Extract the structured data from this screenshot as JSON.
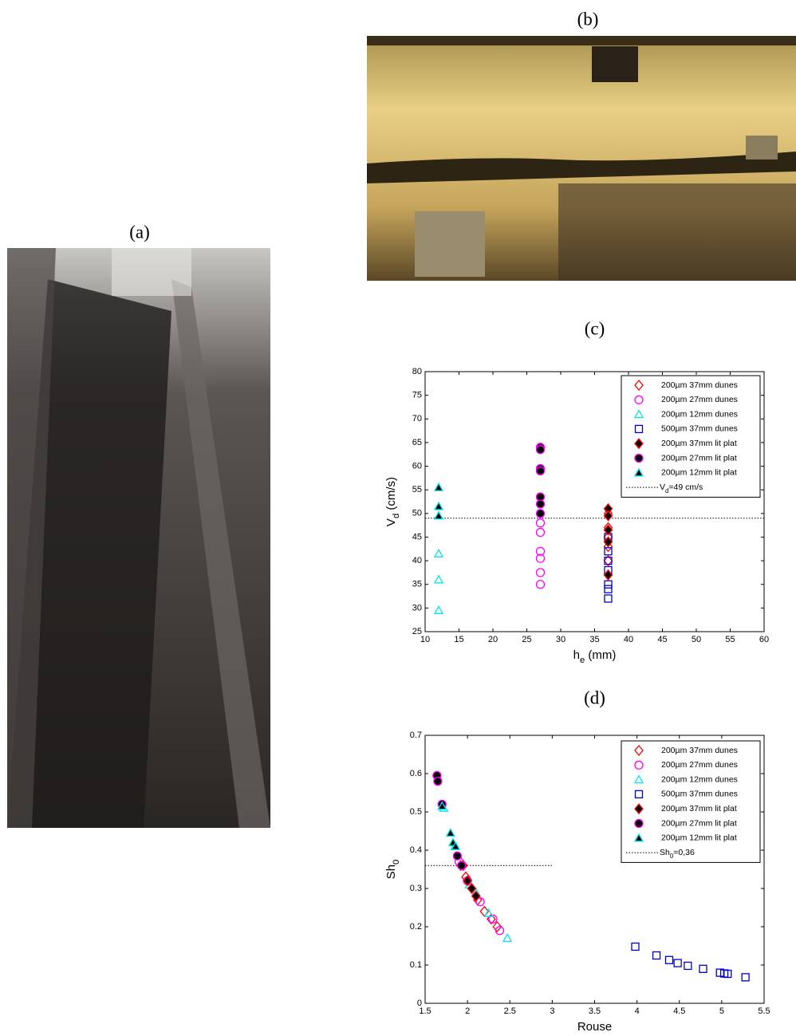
{
  "panel_labels": [
    "(a)",
    "(b)"
  ],
  "chart_data": [
    {
      "type": "scatter",
      "title": "(c)",
      "x_label": [
        "h",
        "e",
        " (mm)"
      ],
      "y_label": [
        "V",
        "d",
        " (cm/s)"
      ],
      "xlim": [
        10,
        60
      ],
      "xticks": [
        10,
        15,
        20,
        25,
        30,
        35,
        40,
        45,
        50,
        55,
        60
      ],
      "ylim": [
        25,
        80
      ],
      "yticks": [
        25,
        30,
        35,
        40,
        45,
        50,
        55,
        60,
        65,
        70,
        75,
        80
      ],
      "reference_line": {
        "value": 49,
        "x_end": 60,
        "label": [
          "V",
          "d",
          "=49 cm/s"
        ]
      },
      "legend": "upper right",
      "series": [
        {
          "name": "200µm 37mm dunes",
          "marker": "diamond",
          "color": "#ff0000",
          "fill": "none",
          "x": [
            37,
            37,
            37,
            37,
            37,
            37
          ],
          "values": [
            50,
            47,
            45,
            43,
            40,
            37
          ]
        },
        {
          "name": "200µm 27mm dunes",
          "marker": "circle",
          "color": "#ff00ff",
          "fill": "none",
          "x": [
            27,
            27,
            27,
            27,
            27,
            27
          ],
          "values": [
            48,
            46,
            42,
            40.5,
            37.5,
            35
          ]
        },
        {
          "name": "200µm 12mm dunes",
          "marker": "triangle",
          "color": "#00e5ee",
          "fill": "none",
          "x": [
            12,
            12,
            12,
            12
          ],
          "values": [
            49.5,
            41.5,
            36,
            29.5
          ]
        },
        {
          "name": "500µm 37mm dunes",
          "marker": "square",
          "color": "#0000cc",
          "fill": "none",
          "x": [
            37,
            37,
            37,
            37,
            37,
            37,
            37
          ],
          "values": [
            45,
            42,
            40,
            38,
            35,
            34,
            32
          ]
        },
        {
          "name": "200µm 37mm lit plat",
          "marker": "diamond",
          "color": "#ff0000",
          "fill": "#000000",
          "x": [
            37,
            37,
            37,
            37,
            37
          ],
          "values": [
            51,
            49.5,
            46.5,
            44,
            37
          ]
        },
        {
          "name": "200µm 27mm lit plat",
          "marker": "circle",
          "color": "#ff00ff",
          "fill": "#000000",
          "x": [
            27,
            27,
            27,
            27,
            27,
            27,
            27
          ],
          "values": [
            64,
            63.5,
            59.5,
            59,
            53.5,
            52,
            50
          ]
        },
        {
          "name": "200µm 12mm lit plat",
          "marker": "triangle",
          "color": "#00e5ee",
          "fill": "#000000",
          "x": [
            12,
            12,
            12
          ],
          "values": [
            55.5,
            51.5,
            49.5
          ]
        }
      ]
    },
    {
      "type": "scatter",
      "title": "(d)",
      "x_label": [
        "Rouse"
      ],
      "y_label": [
        "Sh",
        "0"
      ],
      "xlim": [
        1.5,
        5.5
      ],
      "xticks": [
        1.5,
        2,
        2.5,
        3,
        3.5,
        4,
        4.5,
        5,
        5.5
      ],
      "ylim": [
        0,
        0.7
      ],
      "yticks": [
        0,
        0.1,
        0.2,
        0.3,
        0.4,
        0.5,
        0.6,
        0.7
      ],
      "reference_line": {
        "value": 0.36,
        "x_end": 3,
        "label": [
          "Sh",
          "0",
          "=0,36"
        ]
      },
      "legend": "upper right",
      "series": [
        {
          "name": "200µm 37mm dunes",
          "marker": "diamond",
          "color": "#ff0000",
          "fill": "none",
          "x": [
            1.92,
            1.98,
            2.05,
            2.12,
            2.2,
            2.28,
            2.35
          ],
          "values": [
            0.36,
            0.33,
            0.3,
            0.27,
            0.24,
            0.22,
            0.2
          ]
        },
        {
          "name": "200µm 27mm dunes",
          "marker": "circle",
          "color": "#ff00ff",
          "fill": "none",
          "x": [
            1.9,
            2.0,
            2.15,
            2.3,
            2.38
          ],
          "values": [
            0.37,
            0.32,
            0.265,
            0.22,
            0.19
          ]
        },
        {
          "name": "200µm 12mm dunes",
          "marker": "triangle",
          "color": "#00e5ee",
          "fill": "none",
          "x": [
            1.72,
            1.85,
            2.02,
            2.1,
            2.25,
            2.47
          ],
          "values": [
            0.51,
            0.41,
            0.31,
            0.29,
            0.235,
            0.17
          ]
        },
        {
          "name": "500µm 37mm dunes",
          "marker": "square",
          "color": "#0000cc",
          "fill": "none",
          "x": [
            3.98,
            4.23,
            4.38,
            4.48,
            4.6,
            4.78,
            4.98,
            5.03,
            5.07,
            5.28
          ],
          "values": [
            0.148,
            0.125,
            0.113,
            0.105,
            0.098,
            0.09,
            0.08,
            0.078,
            0.077,
            0.068
          ]
        },
        {
          "name": "200µm 37mm lit plat",
          "marker": "diamond",
          "color": "#ff0000",
          "fill": "#000000",
          "x": [
            1.95,
            2.0,
            2.05,
            2.1
          ],
          "values": [
            0.36,
            0.32,
            0.3,
            0.28
          ]
        },
        {
          "name": "200µm 27mm lit plat",
          "marker": "circle",
          "color": "#ff00ff",
          "fill": "#000000",
          "x": [
            1.64,
            1.65,
            1.7,
            1.88,
            1.93
          ],
          "values": [
            0.595,
            0.58,
            0.52,
            0.385,
            0.36
          ]
        },
        {
          "name": "200µm 12mm lit plat",
          "marker": "triangle",
          "color": "#00e5ee",
          "fill": "#000000",
          "x": [
            1.7,
            1.8,
            1.83,
            1.86
          ],
          "values": [
            0.515,
            0.445,
            0.42,
            0.41
          ]
        }
      ]
    }
  ]
}
